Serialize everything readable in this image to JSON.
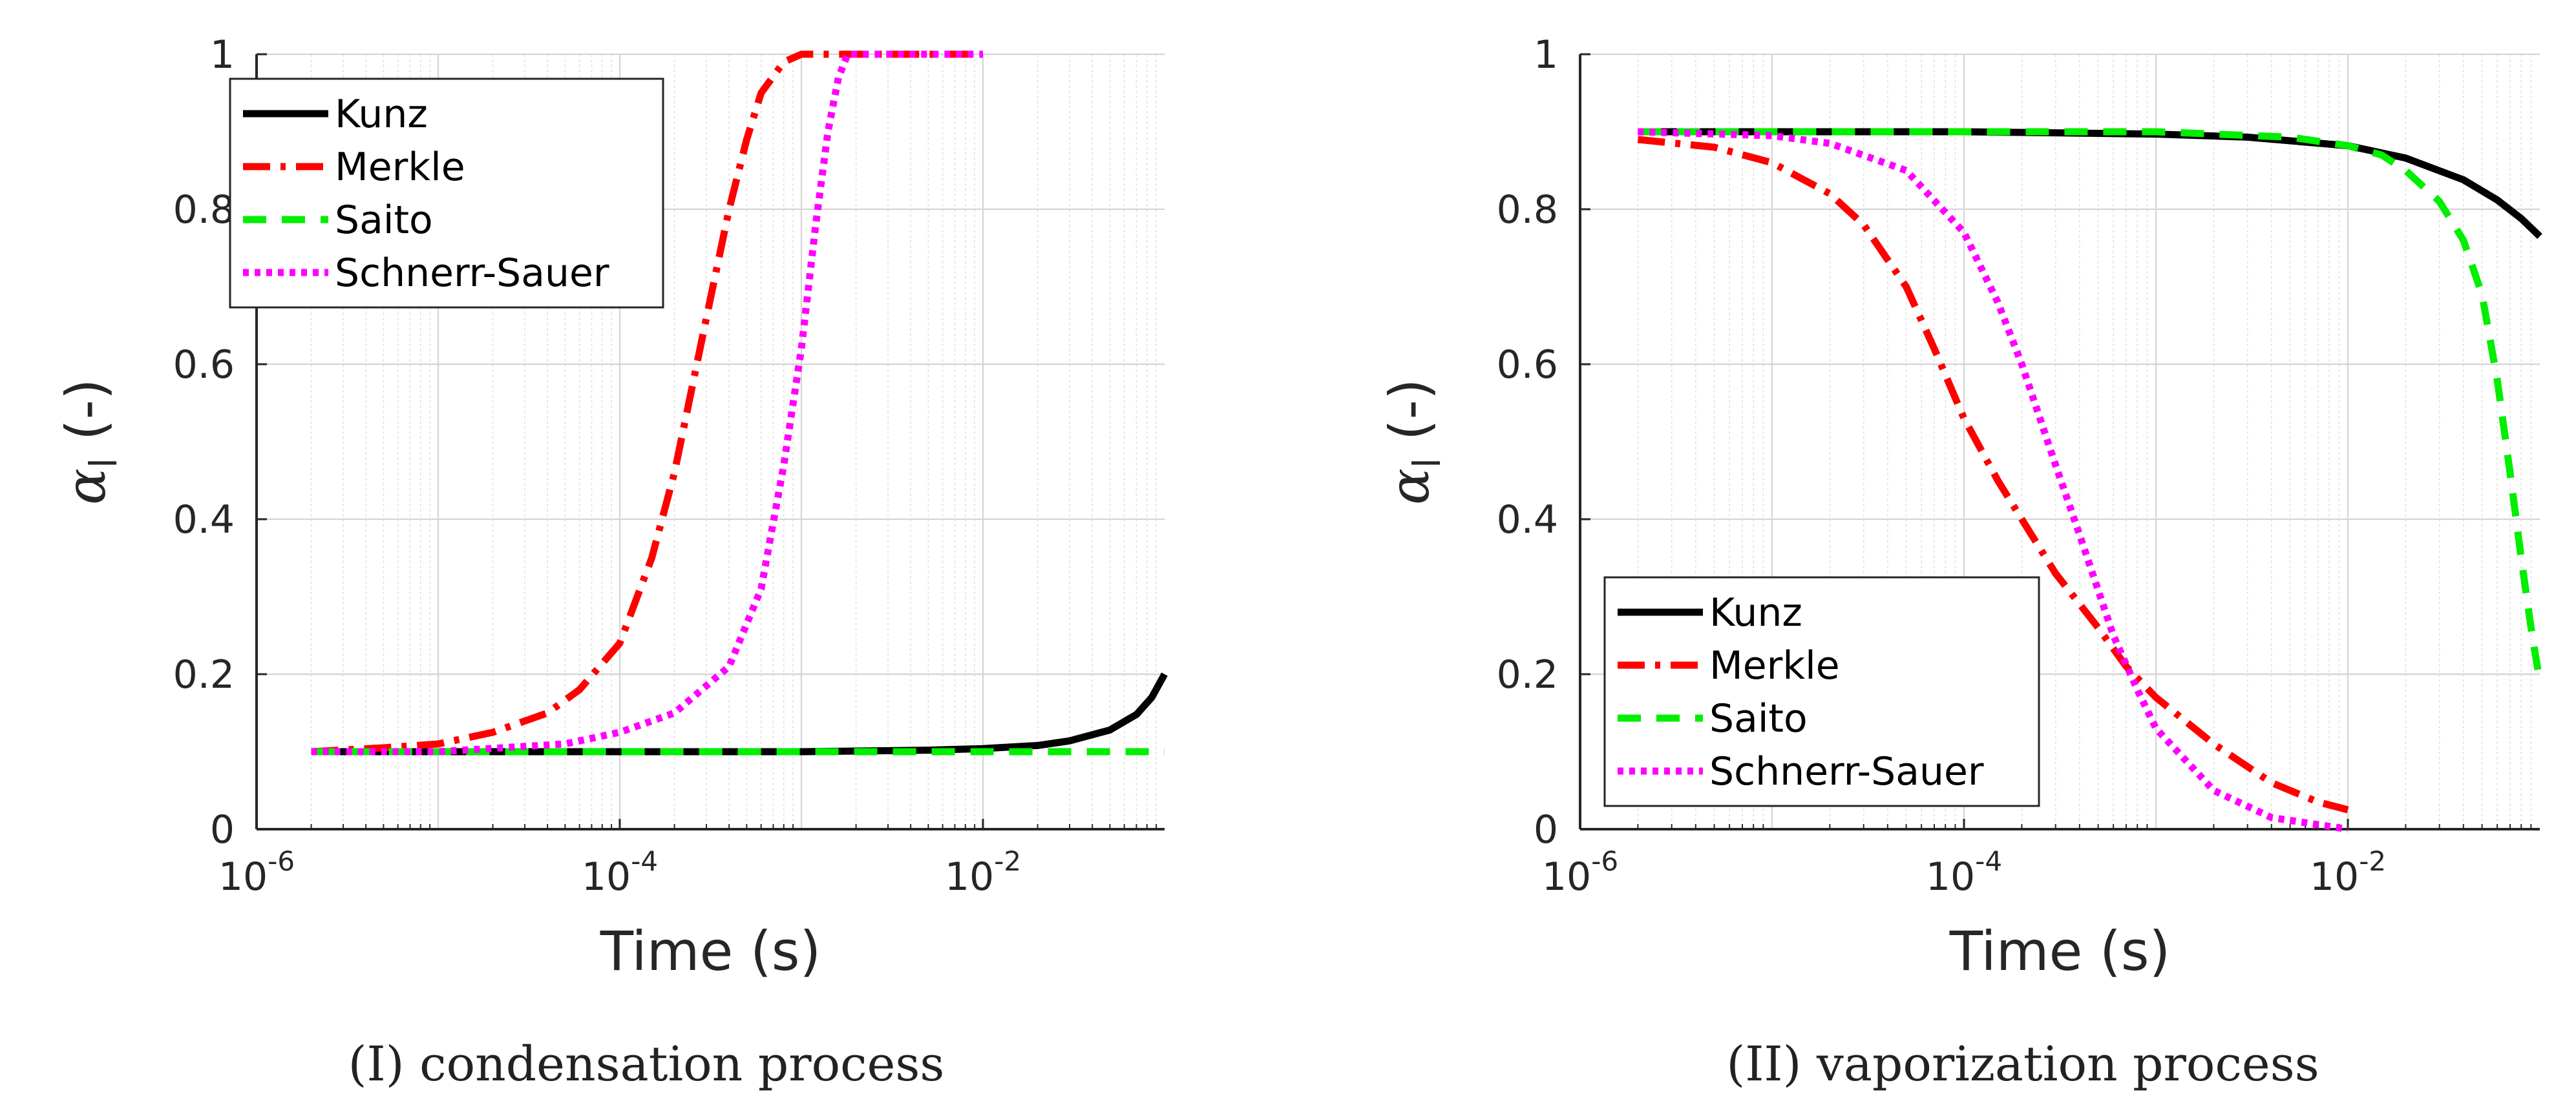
{
  "chart_data": [
    {
      "type": "line",
      "caption": "(I) condensation process",
      "xlabel": "Time (s)",
      "ylabel_symbol": "α",
      "ylabel_subscript": "l",
      "ylabel_unit": "(-)",
      "xscale": "log",
      "xlim": [
        1e-06,
        0.1
      ],
      "ylim": [
        0,
        1
      ],
      "grid": true,
      "legend_position": "top-left",
      "xticks": [
        {
          "base": "10",
          "exp": "-6",
          "value": 1e-06
        },
        {
          "base": "10",
          "exp": "-4",
          "value": 0.0001
        },
        {
          "base": "10",
          "exp": "-2",
          "value": 0.01
        }
      ],
      "yticks": [
        {
          "label": "0",
          "value": 0
        },
        {
          "label": "0.2",
          "value": 0.2
        },
        {
          "label": "0.4",
          "value": 0.4
        },
        {
          "label": "0.6",
          "value": 0.6
        },
        {
          "label": "0.8",
          "value": 0.8
        },
        {
          "label": "1",
          "value": 1
        }
      ],
      "series": [
        {
          "name": "Kunz",
          "color": "#000000",
          "dash": "solid",
          "points": [
            [
              2e-06,
              0.1
            ],
            [
              1e-05,
              0.1
            ],
            [
              0.0001,
              0.1
            ],
            [
              0.001,
              0.1
            ],
            [
              0.005,
              0.102
            ],
            [
              0.01,
              0.104
            ],
            [
              0.02,
              0.108
            ],
            [
              0.03,
              0.114
            ],
            [
              0.05,
              0.128
            ],
            [
              0.07,
              0.148
            ],
            [
              0.085,
              0.17
            ],
            [
              0.1,
              0.2
            ]
          ]
        },
        {
          "name": "Merkle",
          "color": "#ff0000",
          "dash": "dashdot",
          "points": [
            [
              2e-06,
              0.1
            ],
            [
              5e-06,
              0.105
            ],
            [
              1e-05,
              0.11
            ],
            [
              2e-05,
              0.125
            ],
            [
              4e-05,
              0.15
            ],
            [
              6e-05,
              0.18
            ],
            [
              0.0001,
              0.24
            ],
            [
              0.00015,
              0.35
            ],
            [
              0.0002,
              0.46
            ],
            [
              0.0003,
              0.66
            ],
            [
              0.0004,
              0.8
            ],
            [
              0.0005,
              0.89
            ],
            [
              0.0006,
              0.95
            ],
            [
              0.0008,
              0.99
            ],
            [
              0.001,
              1.0
            ],
            [
              0.01,
              1.0
            ]
          ]
        },
        {
          "name": "Saito",
          "color": "#00ee00",
          "dash": "dashed",
          "points": [
            [
              2e-06,
              0.1
            ],
            [
              0.0001,
              0.1
            ],
            [
              0.001,
              0.1
            ],
            [
              0.01,
              0.1
            ],
            [
              0.1,
              0.1
            ]
          ]
        },
        {
          "name": "Schnerr-Sauer",
          "color": "#ff00ff",
          "dash": "dotted",
          "points": [
            [
              2e-06,
              0.1
            ],
            [
              1e-05,
              0.1
            ],
            [
              5e-05,
              0.11
            ],
            [
              0.0001,
              0.125
            ],
            [
              0.0002,
              0.15
            ],
            [
              0.0004,
              0.21
            ],
            [
              0.0006,
              0.31
            ],
            [
              0.0008,
              0.47
            ],
            [
              0.001,
              0.62
            ],
            [
              0.0012,
              0.78
            ],
            [
              0.0014,
              0.9
            ],
            [
              0.0016,
              0.97
            ],
            [
              0.0018,
              1.0
            ],
            [
              0.01,
              1.0
            ]
          ]
        }
      ]
    },
    {
      "type": "line",
      "caption": "(II) vaporization process",
      "xlabel": "Time (s)",
      "ylabel_symbol": "α",
      "ylabel_subscript": "l",
      "ylabel_unit": "(-)",
      "xscale": "log",
      "xlim": [
        1e-06,
        0.1
      ],
      "ylim": [
        0,
        1
      ],
      "grid": true,
      "legend_position": "bottom-left",
      "xticks": [
        {
          "base": "10",
          "exp": "-6",
          "value": 1e-06
        },
        {
          "base": "10",
          "exp": "-4",
          "value": 0.0001
        },
        {
          "base": "10",
          "exp": "-2",
          "value": 0.01
        }
      ],
      "yticks": [
        {
          "label": "0",
          "value": 0
        },
        {
          "label": "0.2",
          "value": 0.2
        },
        {
          "label": "0.4",
          "value": 0.4
        },
        {
          "label": "0.6",
          "value": 0.6
        },
        {
          "label": "0.8",
          "value": 0.8
        },
        {
          "label": "1",
          "value": 1
        }
      ],
      "series": [
        {
          "name": "Kunz",
          "color": "#000000",
          "dash": "solid",
          "points": [
            [
              2e-06,
              0.9
            ],
            [
              0.0001,
              0.9
            ],
            [
              0.001,
              0.897
            ],
            [
              0.003,
              0.893
            ],
            [
              0.01,
              0.882
            ],
            [
              0.02,
              0.866
            ],
            [
              0.04,
              0.838
            ],
            [
              0.06,
              0.812
            ],
            [
              0.08,
              0.788
            ],
            [
              0.1,
              0.765
            ]
          ]
        },
        {
          "name": "Merkle",
          "color": "#ff0000",
          "dash": "dashdot",
          "points": [
            [
              2e-06,
              0.89
            ],
            [
              5e-06,
              0.88
            ],
            [
              1e-05,
              0.86
            ],
            [
              2e-05,
              0.82
            ],
            [
              3e-05,
              0.78
            ],
            [
              5e-05,
              0.7
            ],
            [
              7e-05,
              0.62
            ],
            [
              0.0001,
              0.53
            ],
            [
              0.00015,
              0.45
            ],
            [
              0.0002,
              0.4
            ],
            [
              0.0003,
              0.33
            ],
            [
              0.0005,
              0.26
            ],
            [
              0.0007,
              0.21
            ],
            [
              0.001,
              0.17
            ],
            [
              0.002,
              0.11
            ],
            [
              0.004,
              0.06
            ],
            [
              0.007,
              0.035
            ],
            [
              0.01,
              0.025
            ]
          ]
        },
        {
          "name": "Saito",
          "color": "#00ee00",
          "dash": "dashed",
          "points": [
            [
              2e-06,
              0.9
            ],
            [
              0.001,
              0.9
            ],
            [
              0.005,
              0.893
            ],
            [
              0.01,
              0.882
            ],
            [
              0.015,
              0.87
            ],
            [
              0.02,
              0.85
            ],
            [
              0.03,
              0.81
            ],
            [
              0.04,
              0.76
            ],
            [
              0.05,
              0.69
            ],
            [
              0.06,
              0.58
            ],
            [
              0.07,
              0.46
            ],
            [
              0.08,
              0.35
            ],
            [
              0.09,
              0.26
            ],
            [
              0.1,
              0.19
            ]
          ]
        },
        {
          "name": "Schnerr-Sauer",
          "color": "#ff00ff",
          "dash": "dotted",
          "points": [
            [
              2e-06,
              0.9
            ],
            [
              1e-05,
              0.895
            ],
            [
              2e-05,
              0.885
            ],
            [
              5e-05,
              0.85
            ],
            [
              0.0001,
              0.77
            ],
            [
              0.00015,
              0.68
            ],
            [
              0.0002,
              0.6
            ],
            [
              0.0003,
              0.47
            ],
            [
              0.0004,
              0.38
            ],
            [
              0.0006,
              0.25
            ],
            [
              0.0008,
              0.18
            ],
            [
              0.001,
              0.13
            ],
            [
              0.002,
              0.05
            ],
            [
              0.004,
              0.015
            ],
            [
              0.01,
              0.0
            ]
          ]
        }
      ]
    }
  ]
}
